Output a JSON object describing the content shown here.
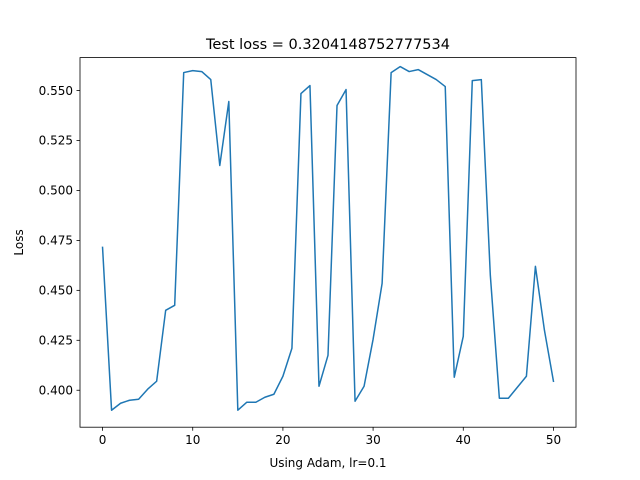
{
  "chart_data": {
    "type": "line",
    "title": "Test loss = 0.3204148752777534",
    "xlabel": "Using Adam, lr=0.1",
    "ylabel": "Loss",
    "xlim": [
      -2.5,
      52.5
    ],
    "ylim": [
      0.3815,
      0.5665
    ],
    "x_ticks": [
      0,
      10,
      20,
      30,
      40,
      50
    ],
    "x_tick_labels": [
      "0",
      "10",
      "20",
      "30",
      "40",
      "50"
    ],
    "y_ticks": [
      0.4,
      0.425,
      0.45,
      0.475,
      0.5,
      0.525,
      0.55
    ],
    "y_tick_labels": [
      "0.400",
      "0.425",
      "0.450",
      "0.475",
      "0.500",
      "0.525",
      "0.550"
    ],
    "grid": false,
    "legend": "none",
    "series": [
      {
        "color": "#1f77b4",
        "x": [
          0,
          1,
          2,
          3,
          4,
          5,
          6,
          7,
          8,
          9,
          10,
          11,
          12,
          13,
          14,
          15,
          16,
          17,
          18,
          19,
          20,
          21,
          22,
          23,
          24,
          25,
          26,
          27,
          28,
          29,
          30,
          31,
          32,
          33,
          34,
          35,
          36,
          37,
          38,
          39,
          40,
          41,
          42,
          43,
          44,
          45,
          46,
          47,
          48,
          49,
          50
        ],
        "y": [
          0.4715,
          0.39,
          0.3935,
          0.395,
          0.3955,
          0.4005,
          0.4045,
          0.44,
          0.4425,
          0.559,
          0.56,
          0.5595,
          0.5555,
          0.5125,
          0.5445,
          0.39,
          0.394,
          0.394,
          0.3965,
          0.398,
          0.407,
          0.421,
          0.5485,
          0.5525,
          0.402,
          0.4175,
          0.5425,
          0.5505,
          0.3945,
          0.402,
          0.4255,
          0.4535,
          0.559,
          0.562,
          0.5595,
          0.5605,
          0.558,
          0.5555,
          0.552,
          0.4065,
          0.427,
          0.555,
          0.5555,
          0.4575,
          0.396,
          0.396,
          0.4015,
          0.407,
          0.462,
          0.43,
          0.4045
        ]
      }
    ]
  }
}
